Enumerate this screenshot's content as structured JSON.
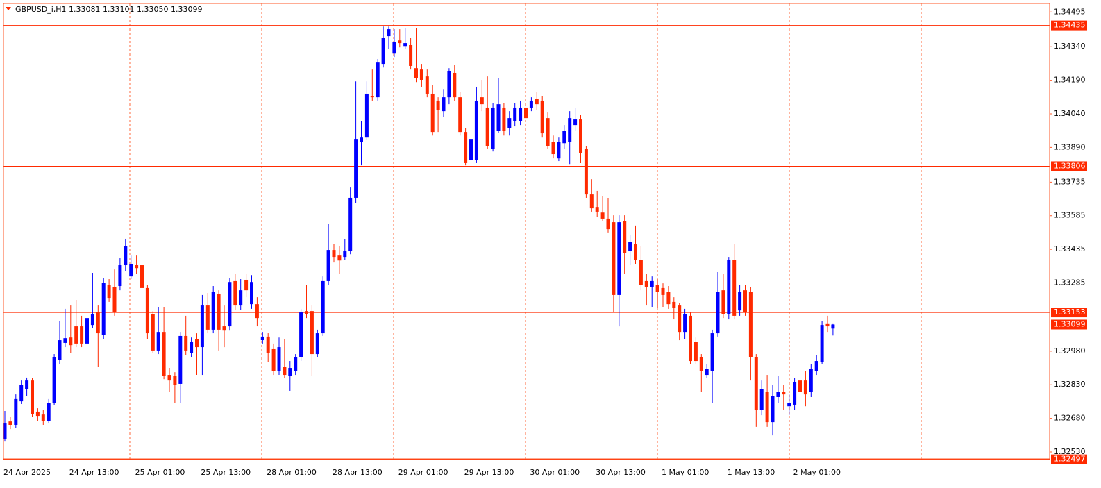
{
  "chart_data": {
    "type": "candlestick",
    "title": "GBPUSD_i,H1  1.33081 1.33101 1.33050 1.33099",
    "up_color": "#0000ff",
    "down_color": "#ff2a00",
    "ylim": [
      1.32499,
      1.34533
    ],
    "yticks": [
      1.34495,
      {
        "value": 1.3434,
        "label": "1.34340"
      },
      {
        "value": 1.3419,
        "label": "1.34190"
      },
      {
        "value": 1.3404,
        "label": "1.34040"
      },
      {
        "value": 1.3389,
        "label": "1.33890"
      },
      1.33735,
      1.33585,
      1.33435,
      1.33285,
      {
        "value": 1.3298,
        "label": "1.32980"
      },
      {
        "value": 1.3283,
        "label": "1.32830"
      },
      {
        "value": 1.3268,
        "label": "1.32680"
      },
      {
        "value": 1.3253,
        "label": "1.32530"
      }
    ],
    "hlines": [
      1.34435,
      1.33806,
      1.33153,
      1.32497
    ],
    "bid": 1.33099,
    "categories": [
      "24 Apr 2025",
      null,
      null,
      null,
      null,
      null,
      null,
      null,
      null,
      null,
      null,
      null,
      "24 Apr 13:00",
      null,
      null,
      null,
      null,
      null,
      null,
      null,
      null,
      null,
      null,
      null,
      "25 Apr 01:00",
      null,
      null,
      null,
      null,
      null,
      null,
      null,
      null,
      null,
      null,
      null,
      "25 Apr 13:00",
      null,
      null,
      null,
      null,
      null,
      null,
      null,
      null,
      null,
      null,
      null,
      "28 Apr 01:00",
      null,
      null,
      null,
      null,
      null,
      null,
      null,
      null,
      null,
      null,
      null,
      "28 Apr 13:00",
      null,
      null,
      null,
      null,
      null,
      null,
      null,
      null,
      null,
      null,
      null,
      "29 Apr 01:00",
      null,
      null,
      null,
      null,
      null,
      null,
      null,
      null,
      null,
      null,
      null,
      "29 Apr 13:00",
      null,
      null,
      null,
      null,
      null,
      null,
      null,
      null,
      null,
      null,
      null,
      "30 Apr 01:00",
      null,
      null,
      null,
      null,
      null,
      null,
      null,
      null,
      null,
      null,
      null,
      "30 Apr 13:00",
      null,
      null,
      null,
      null,
      null,
      null,
      null,
      null,
      null,
      null,
      null,
      "1 May 01:00",
      null,
      null,
      null,
      null,
      null,
      null,
      null,
      null,
      null,
      null,
      null,
      "1 May 13:00",
      null,
      null,
      null,
      null,
      null,
      null,
      null,
      null,
      null,
      null,
      null,
      "2 May 01:00",
      null,
      null,
      null,
      null,
      null,
      null,
      null
    ],
    "ohlc": [
      [
        1.32589,
        1.32713,
        1.32576,
        1.32657
      ],
      [
        1.32666,
        1.32688,
        1.32632,
        1.32651
      ],
      [
        1.32651,
        1.32787,
        1.32638,
        1.32766
      ],
      [
        1.32756,
        1.32849,
        1.32744,
        1.32828
      ],
      [
        1.32812,
        1.32862,
        1.32781,
        1.32849
      ],
      [
        1.32849,
        1.32859,
        1.32688,
        1.327
      ],
      [
        1.3271,
        1.32725,
        1.32669,
        1.32691
      ],
      [
        1.32697,
        1.32719,
        1.32651,
        1.32669
      ],
      [
        1.32669,
        1.32766,
        1.32657,
        1.3275
      ],
      [
        1.3275,
        1.32967,
        1.32738,
        1.32952
      ],
      [
        1.32942,
        1.33116,
        1.32921,
        1.33029
      ],
      [
        1.33017,
        1.33169,
        1.32998,
        1.33038
      ],
      [
        1.33041,
        1.33184,
        1.32973,
        1.33007
      ],
      [
        1.33091,
        1.33209,
        1.32998,
        1.33014
      ],
      [
        1.33091,
        1.33138,
        1.32998,
        1.33014
      ],
      [
        1.33014,
        1.33159,
        1.32998,
        1.33128
      ],
      [
        1.33097,
        1.3333,
        1.33085,
        1.33147
      ],
      [
        1.33153,
        1.33184,
        1.32911,
        1.3306
      ],
      [
        1.33051,
        1.33308,
        1.33035,
        1.33286
      ],
      [
        1.33277,
        1.33302,
        1.332,
        1.33215
      ],
      [
        1.33268,
        1.33345,
        1.33138,
        1.33153
      ],
      [
        1.33271,
        1.33395,
        1.33252,
        1.33364
      ],
      [
        1.33364,
        1.33482,
        1.33339,
        1.33448
      ],
      [
        1.33314,
        1.33407,
        1.33302,
        1.3337
      ],
      [
        1.33364,
        1.33407,
        1.33324,
        1.33351
      ],
      [
        1.33364,
        1.33376,
        1.33246,
        1.33262
      ],
      [
        1.33262,
        1.33277,
        1.33035,
        1.3306
      ],
      [
        1.33144,
        1.33159,
        1.32973,
        1.32983
      ],
      [
        1.32983,
        1.33178,
        1.32967,
        1.33066
      ],
      [
        1.33066,
        1.33178,
        1.32855,
        1.32868
      ],
      [
        1.32874,
        1.32905,
        1.32797,
        1.32849
      ],
      [
        1.32868,
        1.32886,
        1.3275,
        1.32828
      ],
      [
        1.32834,
        1.33066,
        1.3275,
        1.33048
      ],
      [
        1.33048,
        1.33138,
        1.32961,
        1.32983
      ],
      [
        1.32973,
        1.33041,
        1.32952,
        1.33023
      ],
      [
        1.33035,
        1.3306,
        1.32874,
        1.32998
      ],
      [
        1.32998,
        1.33231,
        1.32874,
        1.33184
      ],
      [
        1.33184,
        1.3324,
        1.3306,
        1.33076
      ],
      [
        1.33076,
        1.33271,
        1.3306,
        1.33246
      ],
      [
        1.33237,
        1.33252,
        1.32983,
        1.33076
      ],
      [
        1.33091,
        1.33184,
        1.32998,
        1.33072
      ],
      [
        1.33091,
        1.33308,
        1.33072,
        1.33289
      ],
      [
        1.33293,
        1.33324,
        1.33165,
        1.33184
      ],
      [
        1.33184,
        1.33302,
        1.33165,
        1.33252
      ],
      [
        1.33299,
        1.33324,
        1.33221,
        1.33252
      ],
      [
        1.3319,
        1.3332,
        1.33169,
        1.33289
      ],
      [
        1.3319,
        1.33221,
        1.33091,
        1.33128
      ],
      [
        1.33029,
        1.33066,
        1.33014,
        1.33045
      ],
      [
        1.33045,
        1.3306,
        1.3293,
        1.32973
      ],
      [
        1.32989,
        1.33014,
        1.32874,
        1.3289
      ],
      [
        1.3289,
        1.33041,
        1.32874,
        1.32998
      ],
      [
        1.32911,
        1.33035,
        1.32859,
        1.32874
      ],
      [
        1.32868,
        1.32936,
        1.32803,
        1.32905
      ],
      [
        1.3289,
        1.32967,
        1.32874,
        1.32952
      ],
      [
        1.32952,
        1.33169,
        1.32936,
        1.33153
      ],
      [
        1.33159,
        1.33277,
        1.33128,
        1.33147
      ],
      [
        1.33159,
        1.33184,
        1.3287,
        1.32967
      ],
      [
        1.32967,
        1.33076,
        1.32952,
        1.3306
      ],
      [
        1.3306,
        1.33314,
        1.33048,
        1.33293
      ],
      [
        1.33293,
        1.3355,
        1.33277,
        1.33432
      ],
      [
        1.33432,
        1.33457,
        1.33376,
        1.33401
      ],
      [
        1.33407,
        1.3345,
        1.33324,
        1.33385
      ],
      [
        1.33401,
        1.33479,
        1.33386,
        1.33426
      ],
      [
        1.33426,
        1.33711,
        1.33413,
        1.33665
      ],
      [
        1.33665,
        1.34185,
        1.33643,
        1.33928
      ],
      [
        1.33913,
        1.34006,
        1.3381,
        1.33934
      ],
      [
        1.33934,
        1.34185,
        1.33922,
        1.3413
      ],
      [
        1.3412,
        1.34238,
        1.34099,
        1.34114
      ],
      [
        1.34114,
        1.34285,
        1.34099,
        1.34269
      ],
      [
        1.34263,
        1.3443,
        1.34247,
        1.34378
      ],
      [
        1.34387,
        1.3443,
        1.34331,
        1.34418
      ],
      [
        1.34309,
        1.34418,
        1.34294,
        1.34362
      ],
      [
        1.34368,
        1.34418,
        1.34337,
        1.34356
      ],
      [
        1.34343,
        1.34424,
        1.34331,
        1.34356
      ],
      [
        1.34347,
        1.34378,
        1.34238,
        1.34254
      ],
      [
        1.34244,
        1.34424,
        1.34182,
        1.34201
      ],
      [
        1.34238,
        1.34263,
        1.34161,
        1.34192
      ],
      [
        1.34207,
        1.34238,
        1.34114,
        1.3413
      ],
      [
        1.3413,
        1.3417,
        1.33943,
        1.33959
      ],
      [
        1.34099,
        1.34114,
        1.33959,
        1.34058
      ],
      [
        1.34052,
        1.34151,
        1.34027,
        1.34114
      ],
      [
        1.34114,
        1.34244,
        1.34083,
        1.34232
      ],
      [
        1.34223,
        1.3426,
        1.34099,
        1.34114
      ],
      [
        1.34114,
        1.34139,
        1.33943,
        1.33959
      ],
      [
        1.33959,
        1.33975,
        1.3381,
        1.3382
      ],
      [
        1.33835,
        1.3399,
        1.3381,
        1.33928
      ],
      [
        1.33835,
        1.34161,
        1.3382,
        1.34099
      ],
      [
        1.34114,
        1.34192,
        1.34052,
        1.34083
      ],
      [
        1.34068,
        1.34207,
        1.33882,
        1.33897
      ],
      [
        1.33882,
        1.34089,
        1.33872,
        1.34068
      ],
      [
        1.33965,
        1.34201,
        1.33953,
        1.34083
      ],
      [
        1.34068,
        1.34089,
        1.33943,
        1.33965
      ],
      [
        1.33975,
        1.34052,
        1.33943,
        1.34021
      ],
      [
        1.34006,
        1.34089,
        1.33984,
        1.34068
      ],
      [
        1.34006,
        1.34099,
        1.3399,
        1.34068
      ],
      [
        1.34068,
        1.34099,
        1.33996,
        1.34021
      ],
      [
        1.34068,
        1.34114,
        1.34052,
        1.34099
      ],
      [
        1.34108,
        1.34136,
        1.34058,
        1.34083
      ],
      [
        1.34099,
        1.3412,
        1.33934,
        1.33953
      ],
      [
        1.34021,
        1.34046,
        1.33882,
        1.33897
      ],
      [
        1.33913,
        1.33943,
        1.33841,
        1.3386
      ],
      [
        1.33841,
        1.33934,
        1.33829,
        1.33913
      ],
      [
        1.33909,
        1.3399,
        1.33882,
        1.33965
      ],
      [
        1.33913,
        1.34052,
        1.33816,
        1.34021
      ],
      [
        1.3399,
        1.34068,
        1.33965,
        1.34015
      ],
      [
        1.34015,
        1.34037,
        1.3382,
        1.33866
      ],
      [
        1.33882,
        1.33897,
        1.33665,
        1.3368
      ],
      [
        1.3368,
        1.33748,
        1.33603,
        1.33618
      ],
      [
        1.33624,
        1.33696,
        1.33581,
        1.33603
      ],
      [
        1.33599,
        1.33674,
        1.33562,
        1.33572
      ],
      [
        1.33572,
        1.33665,
        1.3351,
        1.33525
      ],
      [
        1.33556,
        1.33587,
        1.33153,
        1.33231
      ],
      [
        1.33231,
        1.33587,
        1.33091,
        1.33556
      ],
      [
        1.33562,
        1.33587,
        1.33324,
        1.33417
      ],
      [
        1.33426,
        1.335,
        1.33364,
        1.33469
      ],
      [
        1.33457,
        1.33541,
        1.3337,
        1.33386
      ],
      [
        1.33386,
        1.33448,
        1.33252,
        1.33277
      ],
      [
        1.33293,
        1.33324,
        1.33184,
        1.33268
      ],
      [
        1.33268,
        1.33314,
        1.33178,
        1.33293
      ],
      [
        1.33277,
        1.33302,
        1.33172,
        1.33246
      ],
      [
        1.33262,
        1.33283,
        1.33178,
        1.33231
      ],
      [
        1.33246,
        1.33271,
        1.33169,
        1.3319
      ],
      [
        1.332,
        1.33221,
        1.33122,
        1.33175
      ],
      [
        1.33184,
        1.33196,
        1.33029,
        1.33066
      ],
      [
        1.33066,
        1.33169,
        1.33035,
        1.33147
      ],
      [
        1.33138,
        1.33153,
        1.32921,
        1.32936
      ],
      [
        1.33023,
        1.33041,
        1.32921,
        1.32936
      ],
      [
        1.32952,
        1.32967,
        1.32797,
        1.3289
      ],
      [
        1.32874,
        1.32921,
        1.32859,
        1.32899
      ],
      [
        1.3289,
        1.33076,
        1.3275,
        1.3306
      ],
      [
        1.3306,
        1.33333,
        1.33045,
        1.33246
      ],
      [
        1.33252,
        1.33324,
        1.33128,
        1.33147
      ],
      [
        1.33147,
        1.33401,
        1.33122,
        1.33386
      ],
      [
        1.33386,
        1.33457,
        1.33122,
        1.33138
      ],
      [
        1.33162,
        1.33277,
        1.33138,
        1.33246
      ],
      [
        1.33252,
        1.33277,
        1.33138,
        1.33153
      ],
      [
        1.33246,
        1.33265,
        1.32849,
        1.32952
      ],
      [
        1.32952,
        1.32967,
        1.32642,
        1.32719
      ],
      [
        1.32719,
        1.32849,
        1.32694,
        1.32812
      ],
      [
        1.32797,
        1.32874,
        1.32642,
        1.32663
      ],
      [
        1.32663,
        1.32828,
        1.32604,
        1.32781
      ],
      [
        1.32775,
        1.32871,
        1.3275,
        1.32797
      ],
      [
        1.32797,
        1.32828,
        1.32719,
        1.32787
      ],
      [
        1.32734,
        1.32787,
        1.32694,
        1.3275
      ],
      [
        1.32741,
        1.32859,
        1.32719,
        1.32843
      ],
      [
        1.32849,
        1.3287,
        1.32766,
        1.32797
      ],
      [
        1.32849,
        1.3289,
        1.32734,
        1.32787
      ],
      [
        1.32797,
        1.32921,
        1.32775,
        1.32899
      ],
      [
        1.3289,
        1.32961,
        1.32874,
        1.32936
      ],
      [
        1.3293,
        1.33116,
        1.32921,
        1.33097
      ],
      [
        1.33101,
        1.33138,
        1.33066,
        1.33091
      ],
      [
        1.33081,
        1.33101,
        1.3305,
        1.33099
      ]
    ]
  }
}
